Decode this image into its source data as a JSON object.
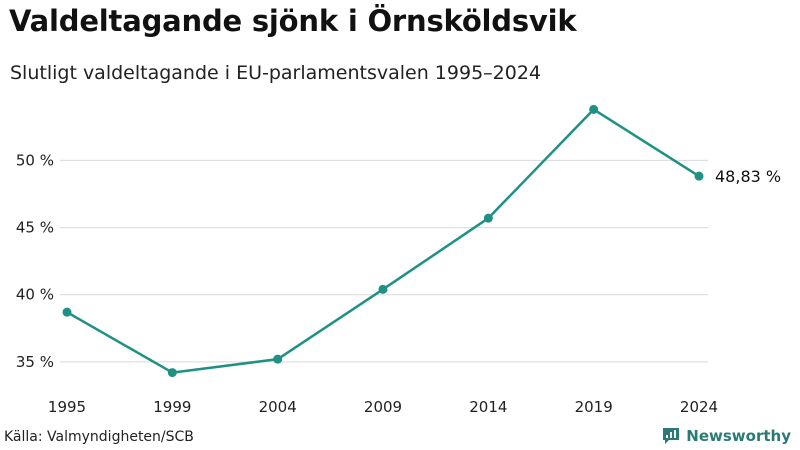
{
  "header": {
    "title": "Valdeltagande sjönk i Örnsköldsvik",
    "subtitle": "Slutligt valdeltagande i EU-parlamentsvalen 1995–2024"
  },
  "footer": {
    "source": "Källa: Valmyndigheten/SCB",
    "brand": "Newsworthy"
  },
  "colors": {
    "line": "#1f9184",
    "grid": "#d9d9d9",
    "brand": "#2a7a76"
  },
  "chart_data": {
    "type": "line",
    "title": "Valdeltagande sjönk i Örnsköldsvik",
    "subtitle": "Slutligt valdeltagande i EU-parlamentsvalen 1995–2024",
    "xlabel": "",
    "ylabel": "",
    "categories": [
      "1995",
      "1999",
      "2004",
      "2009",
      "2014",
      "2019",
      "2024"
    ],
    "values": [
      38.7,
      34.2,
      35.2,
      40.4,
      45.7,
      53.8,
      48.83
    ],
    "y_ticks": [
      35,
      40,
      45,
      50
    ],
    "y_tick_labels": [
      "35 %",
      "40 %",
      "45 %",
      "50 %"
    ],
    "ylim": [
      33.5,
      54.5
    ],
    "grid": true,
    "end_label": "48,83 %"
  }
}
